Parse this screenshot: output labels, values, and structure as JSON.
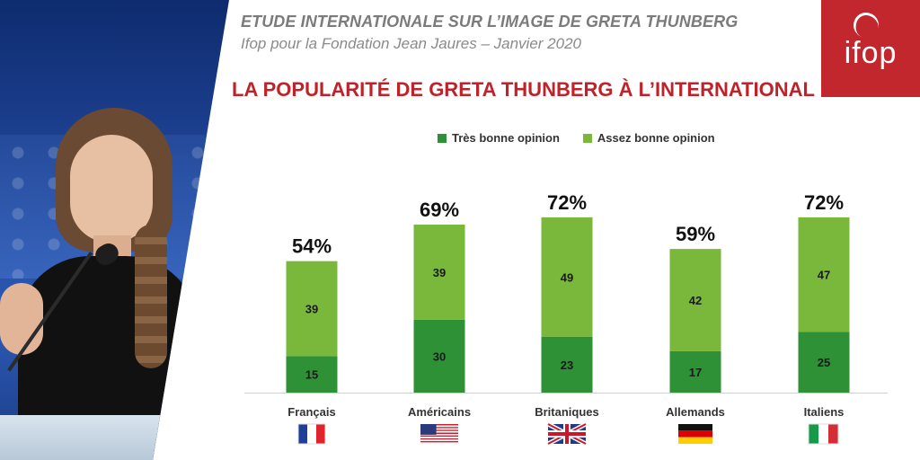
{
  "header": {
    "sup_title": "ETUDE INTERNATIONALE SUR L’IMAGE DE GRETA THUNBERG",
    "sub_title": "Ifop pour la Fondation Jean Jaures – Janvier 2020",
    "main_title": "LA POPULARITÉ DE GRETA THUNBERG À L’INTERNATIONAL"
  },
  "logo": {
    "text": "ifop",
    "color": "#c1272d"
  },
  "colors": {
    "dark_green": "#2e9135",
    "light_green": "#7ab83c",
    "title_red": "#c0222a"
  },
  "chart_data": {
    "type": "bar",
    "stacked": true,
    "title": "LA POPULARITÉ DE GRETA THUNBERG À L’INTERNATIONAL",
    "categories": [
      "Français",
      "Américains",
      "Britaniques",
      "Allemands",
      "Italiens"
    ],
    "series": [
      {
        "name": "Très bonne opinion",
        "color": "#2e9135",
        "values": [
          15,
          30,
          23,
          17,
          25
        ]
      },
      {
        "name": "Assez bonne opinion",
        "color": "#7ab83c",
        "values": [
          39,
          39,
          49,
          42,
          47
        ]
      }
    ],
    "totals": [
      "54%",
      "69%",
      "72%",
      "59%",
      "72%"
    ],
    "flags": [
      "fr-flag-icon",
      "us-flag-icon",
      "uk-flag-icon",
      "de-flag-icon",
      "it-flag-icon"
    ],
    "ylim": [
      0,
      80
    ],
    "xlabel": "",
    "ylabel": "",
    "legend_position": "top"
  }
}
